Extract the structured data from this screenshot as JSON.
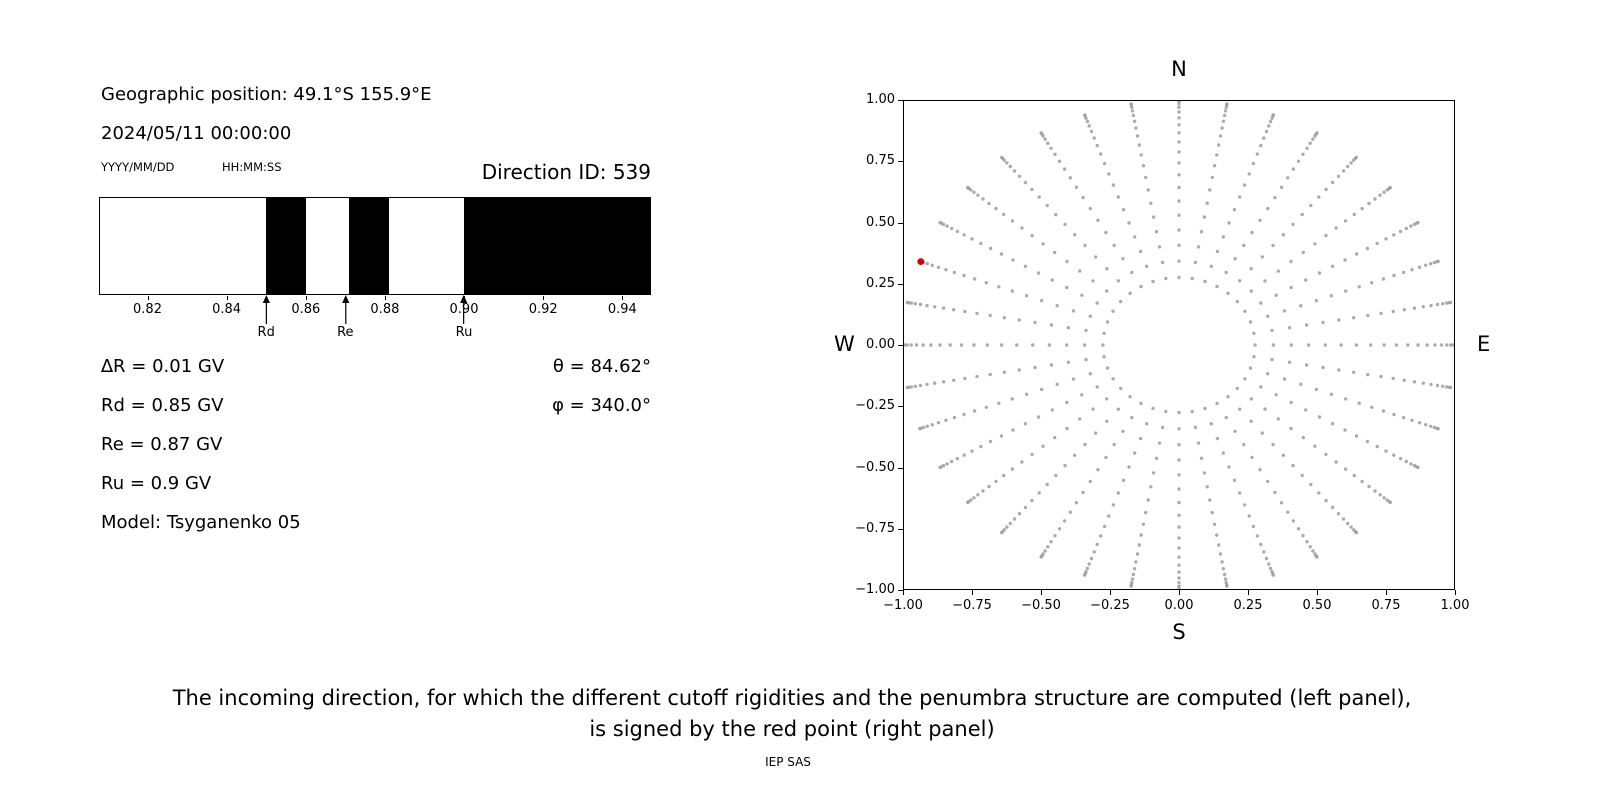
{
  "page": {
    "background": "#ffffff"
  },
  "info": {
    "geo_position": "Geographic position: 49.1°S 155.9°E",
    "datetime": "2024/05/11 00:00:00",
    "date_format_label": "YYYY/MM/DD",
    "time_format_label": "HH:MM:SS",
    "direction_id_label": "Direction ID: 539",
    "delta_r": "∆R = 0.01 GV",
    "rd": "Rd = 0.85 GV",
    "re": "Re = 0.87 GV",
    "ru": "Ru = 0.9 GV",
    "model": "Model: Tsyganenko 05",
    "theta": "θ = 84.62°",
    "phi": "φ = 340.0°"
  },
  "caption": {
    "line1": "The incoming direction, for which the different cutoff rigidities and the penumbra structure are computed (left panel),",
    "line2": "is signed by the red point (right panel)",
    "credit": "IEP SAS"
  },
  "chart_data": [
    {
      "id": "penumbra",
      "type": "bar",
      "title": "Penumbra structure (black = forbidden rigidity bands, white = allowed)",
      "x_range": [
        0.808,
        0.947
      ],
      "xticks": [
        0.82,
        0.84,
        0.86,
        0.88,
        0.9,
        0.92,
        0.94
      ],
      "xtick_labels": [
        "0.82",
        "0.84",
        "0.86",
        "0.88",
        "0.90",
        "0.92",
        "0.94"
      ],
      "forbidden_bands": [
        [
          0.85,
          0.86
        ],
        [
          0.871,
          0.881
        ],
        [
          0.9,
          0.947
        ]
      ],
      "markers": [
        {
          "label": "Rd",
          "value": 0.85
        },
        {
          "label": "Re",
          "value": 0.87
        },
        {
          "label": "Ru",
          "value": 0.9
        }
      ],
      "band_color": "#000000",
      "background": "#ffffff"
    },
    {
      "id": "incoming-directions",
      "type": "scatter",
      "compass": {
        "top": "N",
        "bottom": "S",
        "left": "W",
        "right": "E"
      },
      "xlim": [
        -1.0,
        1.0
      ],
      "ylim": [
        -1.0,
        1.0
      ],
      "xticks": [
        -1.0,
        -0.75,
        -0.5,
        -0.25,
        0.0,
        0.25,
        0.5,
        0.75,
        1.0
      ],
      "xtick_labels": [
        "−1.00",
        "−0.75",
        "−0.50",
        "−0.25",
        "0.00",
        "0.25",
        "0.50",
        "0.75",
        "1.00"
      ],
      "yticks": [
        1.0,
        0.75,
        0.5,
        0.25,
        0.0,
        -0.25,
        -0.5,
        -0.75,
        -1.0
      ],
      "ytick_labels": [
        "1.00",
        "0.75",
        "0.50",
        "0.25",
        "0.00",
        "−0.25",
        "−0.50",
        "−0.75",
        "−1.00"
      ],
      "grid": false,
      "spokes": {
        "azimuth_start_deg": 0,
        "azimuth_step_deg": 10,
        "azimuth_count": 36,
        "zenith_start_deg": 16,
        "zenith_step_deg": 4,
        "zenith_count": 19,
        "radius_rule": "sin(zenith)"
      },
      "dot_color": "#9c9c9c",
      "red_point": {
        "x": -0.9356,
        "y": 0.3405,
        "color": "#d40000"
      }
    }
  ]
}
